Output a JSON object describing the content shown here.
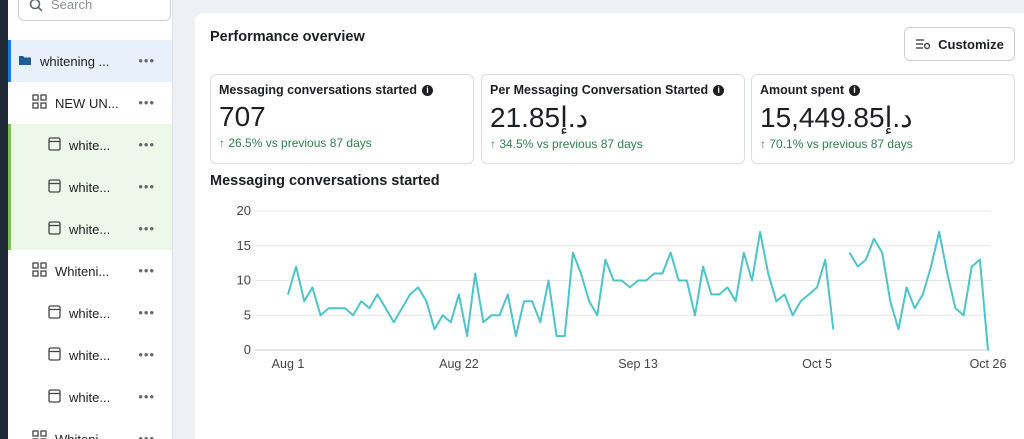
{
  "search": {
    "placeholder": "Search"
  },
  "sidebar": {
    "items": [
      {
        "label": "whitening ...",
        "icon": "folder-icon",
        "level": 0,
        "state": "selected"
      },
      {
        "label": "NEW UN...",
        "icon": "ad-set-grid-icon",
        "level": 1,
        "state": "normal"
      },
      {
        "label": "white...",
        "icon": "ad-window-icon",
        "level": 2,
        "state": "highlighted"
      },
      {
        "label": "white...",
        "icon": "ad-window-icon",
        "level": 2,
        "state": "highlighted"
      },
      {
        "label": "white...",
        "icon": "ad-window-icon",
        "level": 2,
        "state": "highlighted"
      },
      {
        "label": "Whiteni...",
        "icon": "ad-set-grid-icon",
        "level": 1,
        "state": "normal"
      },
      {
        "label": "white...",
        "icon": "ad-window-icon",
        "level": 2,
        "state": "normal"
      },
      {
        "label": "white...",
        "icon": "ad-window-icon",
        "level": 2,
        "state": "normal"
      },
      {
        "label": "white...",
        "icon": "ad-window-icon",
        "level": 2,
        "state": "normal"
      },
      {
        "label": "Whiteni...",
        "icon": "ad-set-grid-icon",
        "level": 1,
        "state": "normal"
      }
    ],
    "more_label": "•••"
  },
  "main": {
    "title": "Performance overview",
    "customize_label": "Customize",
    "cards": [
      {
        "title": "Messaging conversations started",
        "value": "707",
        "change": "26.5% vs previous 87 days"
      },
      {
        "title": "Per Messaging Conversation Started",
        "value": "21.85د.إ",
        "change": "34.5% vs previous 87 days"
      },
      {
        "title": "Amount spent",
        "value": "15,449.85د.إ",
        "change": "70.1% vs previous 87 days"
      }
    ],
    "info_glyph": "i",
    "up_arrow": "↑",
    "chart_title": "Messaging conversations started"
  },
  "colors": {
    "accent": "#1877f2",
    "line": "#4fc3c7",
    "positive": "#2e7d4f",
    "selected_bg": "#e7f0fb",
    "highlight_bg": "#eef8ea"
  },
  "chart_data": {
    "type": "line",
    "title": "Messaging conversations started",
    "x_tick_labels": [
      "Aug 1",
      "Aug 22",
      "Sep 13",
      "Oct 5",
      "Oct 26"
    ],
    "y_ticks": [
      0,
      5,
      10,
      15,
      20
    ],
    "ylim": [
      0,
      20
    ],
    "grid": true,
    "series": [
      {
        "values": [
          8,
          12,
          7,
          9,
          5,
          6,
          6,
          6,
          5,
          7,
          6,
          8,
          6,
          4,
          6,
          8,
          9,
          7,
          3,
          5,
          4,
          8,
          2,
          11,
          4,
          5,
          5,
          8,
          2,
          7,
          7,
          4,
          10,
          2,
          2,
          14,
          11,
          7,
          5,
          13,
          10,
          10,
          9,
          10,
          10,
          11,
          11,
          14,
          10,
          10,
          5,
          12,
          8,
          8,
          9,
          7,
          14,
          10,
          17,
          11,
          7,
          8,
          5,
          7,
          8,
          9,
          13,
          3,
          null,
          14,
          12,
          13,
          16,
          14,
          7,
          3,
          9,
          6,
          8,
          12,
          17,
          11,
          6,
          5,
          12,
          13,
          0
        ]
      }
    ]
  }
}
